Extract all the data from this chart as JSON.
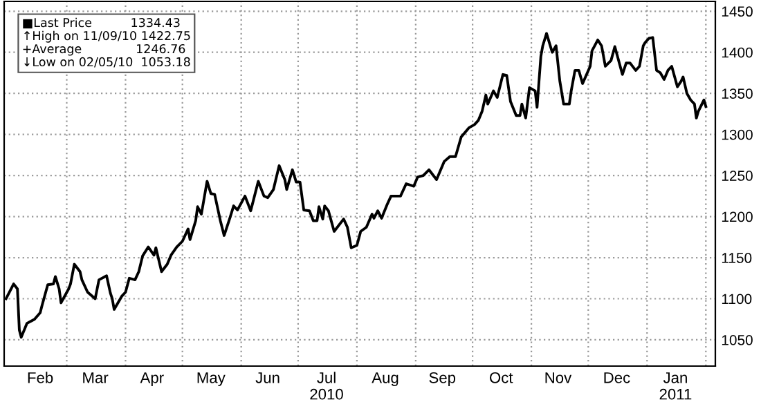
{
  "chart_data": {
    "type": "line",
    "x": [
      "2010-01-28",
      "2010-02-01",
      "2010-02-03",
      "2010-02-04",
      "2010-02-05",
      "2010-02-08",
      "2010-02-12",
      "2010-02-15",
      "2010-02-16",
      "2010-02-19",
      "2010-02-22",
      "2010-02-23",
      "2010-02-25",
      "2010-02-26",
      "2010-03-02",
      "2010-03-03",
      "2010-03-05",
      "2010-03-08",
      "2010-03-09",
      "2010-03-12",
      "2010-03-16",
      "2010-03-18",
      "2010-03-22",
      "2010-03-24",
      "2010-03-25",
      "2010-03-26",
      "2010-03-30",
      "2010-04-01",
      "2010-04-03",
      "2010-04-06",
      "2010-04-08",
      "2010-04-10",
      "2010-04-13",
      "2010-04-16",
      "2010-04-17",
      "2010-04-20",
      "2010-04-23",
      "2010-04-25",
      "2010-04-28",
      "2010-05-01",
      "2010-05-04",
      "2010-05-05",
      "2010-05-08",
      "2010-05-09",
      "2010-05-11",
      "2010-05-14",
      "2010-05-16",
      "2010-05-18",
      "2010-05-21",
      "2010-05-23",
      "2010-05-26",
      "2010-05-28",
      "2010-05-30",
      "2010-06-03",
      "2010-06-06",
      "2010-06-10",
      "2010-06-13",
      "2010-06-15",
      "2010-06-18",
      "2010-06-21",
      "2010-06-24",
      "2010-06-25",
      "2010-06-28",
      "2010-06-30",
      "2010-07-02",
      "2010-07-04",
      "2010-07-07",
      "2010-07-09",
      "2010-07-11",
      "2010-07-12",
      "2010-07-14",
      "2010-07-15",
      "2010-07-17",
      "2010-07-20",
      "2010-07-25",
      "2010-07-27",
      "2010-07-29",
      "2010-08-01",
      "2010-08-03",
      "2010-08-06",
      "2010-08-09",
      "2010-08-10",
      "2010-08-12",
      "2010-08-14",
      "2010-08-17",
      "2010-08-19",
      "2010-08-24",
      "2010-08-27",
      "2010-08-31",
      "2010-09-02",
      "2010-09-05",
      "2010-09-08",
      "2010-09-12",
      "2010-09-16",
      "2010-09-19",
      "2010-09-22",
      "2010-09-25",
      "2010-09-29",
      "2010-10-02",
      "2010-10-04",
      "2010-10-06",
      "2010-10-08",
      "2010-10-09",
      "2010-10-12",
      "2010-10-14",
      "2010-10-17",
      "2010-10-19",
      "2010-10-21",
      "2010-10-24",
      "2010-10-26",
      "2010-10-27",
      "2010-10-29",
      "2010-10-31",
      "2010-11-03",
      "2010-11-04",
      "2010-11-06",
      "2010-11-07",
      "2010-11-09",
      "2010-11-12",
      "2010-11-14",
      "2010-11-16",
      "2010-11-18",
      "2010-11-21",
      "2010-11-22",
      "2010-11-24",
      "2010-11-26",
      "2010-11-28",
      "2010-12-02",
      "2010-12-03",
      "2010-12-06",
      "2010-12-08",
      "2010-12-10",
      "2010-12-13",
      "2010-12-15",
      "2010-12-19",
      "2010-12-21",
      "2010-12-23",
      "2010-12-26",
      "2010-12-28",
      "2010-12-30",
      "2010-12-31",
      "2011-01-02",
      "2011-01-04",
      "2011-01-06",
      "2011-01-08",
      "2011-01-10",
      "2011-01-12",
      "2011-01-14",
      "2011-01-17",
      "2011-01-19",
      "2011-01-20",
      "2011-01-22",
      "2011-01-24",
      "2011-01-26",
      "2011-01-27",
      "2011-01-28",
      "2011-01-31",
      "2011-02-01"
    ],
    "series": [
      {
        "color": "#000000",
        "values": [
          1100,
          1118,
          1112,
          1062,
          1053,
          1070,
          1075,
          1083,
          1092,
          1117,
          1118,
          1127,
          1112,
          1095,
          1112,
          1118,
          1142,
          1133,
          1123,
          1108,
          1100,
          1123,
          1128,
          1107,
          1100,
          1087,
          1103,
          1108,
          1125,
          1123,
          1133,
          1152,
          1163,
          1153,
          1162,
          1133,
          1142,
          1153,
          1163,
          1170,
          1185,
          1172,
          1195,
          1212,
          1203,
          1243,
          1228,
          1227,
          1195,
          1177,
          1198,
          1213,
          1208,
          1225,
          1207,
          1243,
          1225,
          1223,
          1233,
          1262,
          1245,
          1233,
          1257,
          1242,
          1242,
          1208,
          1207,
          1195,
          1195,
          1212,
          1197,
          1213,
          1207,
          1182,
          1197,
          1187,
          1162,
          1165,
          1182,
          1187,
          1203,
          1198,
          1207,
          1198,
          1215,
          1225,
          1225,
          1240,
          1237,
          1248,
          1250,
          1257,
          1245,
          1267,
          1273,
          1273,
          1297,
          1308,
          1312,
          1317,
          1328,
          1348,
          1337,
          1353,
          1345,
          1373,
          1372,
          1340,
          1323,
          1323,
          1337,
          1320,
          1357,
          1353,
          1333,
          1395,
          1408,
          1423,
          1400,
          1408,
          1365,
          1337,
          1337,
          1353,
          1378,
          1378,
          1362,
          1383,
          1402,
          1415,
          1408,
          1383,
          1390,
          1407,
          1373,
          1387,
          1387,
          1378,
          1383,
          1408,
          1412,
          1417,
          1418,
          1378,
          1375,
          1367,
          1378,
          1383,
          1358,
          1365,
          1370,
          1350,
          1342,
          1337,
          1320,
          1328,
          1342,
          1334
        ]
      }
    ],
    "xlim": [
      "2010-01-27",
      "2011-02-06"
    ],
    "xticks": [
      {
        "value": "2010-02-15",
        "label": "Feb"
      },
      {
        "value": "2010-03-01",
        "label": null
      },
      {
        "value": "2010-03-16",
        "label": "Mar"
      },
      {
        "value": "2010-04-01",
        "label": null
      },
      {
        "value": "2010-04-15",
        "label": "Apr"
      },
      {
        "value": "2010-05-01",
        "label": null
      },
      {
        "value": "2010-05-16",
        "label": "May"
      },
      {
        "value": "2010-06-01",
        "label": null
      },
      {
        "value": "2010-06-15",
        "label": "Jun"
      },
      {
        "value": "2010-07-01",
        "label": null
      },
      {
        "value": "2010-07-16",
        "label": "Jul\n2010"
      },
      {
        "value": "2010-08-01",
        "label": null
      },
      {
        "value": "2010-08-16",
        "label": "Aug"
      },
      {
        "value": "2010-09-01",
        "label": null
      },
      {
        "value": "2010-09-15",
        "label": "Sep"
      },
      {
        "value": "2010-10-01",
        "label": null
      },
      {
        "value": "2010-10-16",
        "label": "Oct"
      },
      {
        "value": "2010-11-01",
        "label": null
      },
      {
        "value": "2010-11-15",
        "label": "Nov"
      },
      {
        "value": "2010-12-01",
        "label": null
      },
      {
        "value": "2010-12-16",
        "label": "Dec"
      },
      {
        "value": "2011-01-01",
        "label": null
      },
      {
        "value": "2011-01-16",
        "label": "Jan\n2011"
      },
      {
        "value": "2011-02-01",
        "label": null
      }
    ],
    "ylim": [
      1018,
      1462
    ],
    "yticks": [
      1050,
      1100,
      1150,
      1200,
      1250,
      1300,
      1350,
      1400,
      1450
    ],
    "grid": true,
    "line_style": "solid",
    "annotations": [
      "■Last Price          1334.43",
      "↑High on 11/09/10 1422.75",
      "+Average              1246.76",
      "↓Low on 02/05/10  1053.18"
    ]
  }
}
